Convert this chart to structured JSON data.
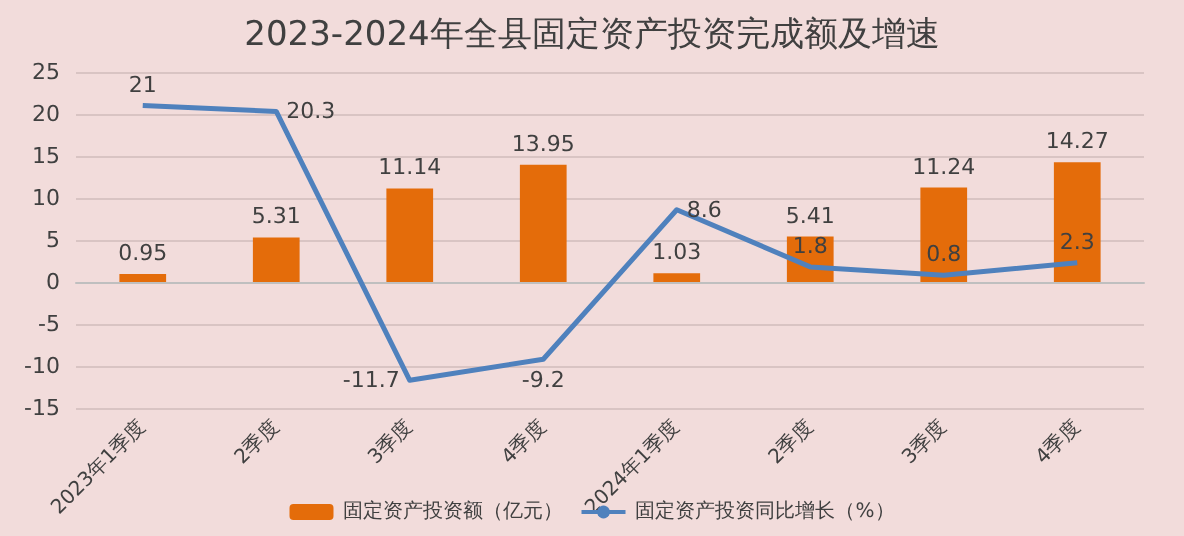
{
  "chart_data": {
    "type": "bar",
    "title": "2023-2024年全县固定资产投资完成额及增速",
    "categories": [
      "2023年1季度",
      "2季度",
      "3季度",
      "4季度",
      "2024年1季度",
      "2季度",
      "3季度",
      "4季度"
    ],
    "series": [
      {
        "name": "固定资产投资额（亿元）",
        "color": "#e46c0a",
        "values": [
          0.95,
          5.31,
          11.14,
          13.95,
          1.03,
          5.41,
          11.24,
          14.27
        ]
      },
      {
        "name": "固定资产投资同比增长（%）",
        "type": "line",
        "color": "#4f81bd",
        "values": [
          21,
          20.3,
          -11.7,
          -9.2,
          8.6,
          1.8,
          0.8,
          2.3
        ]
      }
    ],
    "ylim": [
      -15,
      25
    ],
    "yticks": [
      -15,
      -10,
      -5,
      0,
      5,
      10,
      15,
      20,
      25
    ],
    "grid": "y",
    "legend": "bottom",
    "marker": "none",
    "data_labels": true
  }
}
